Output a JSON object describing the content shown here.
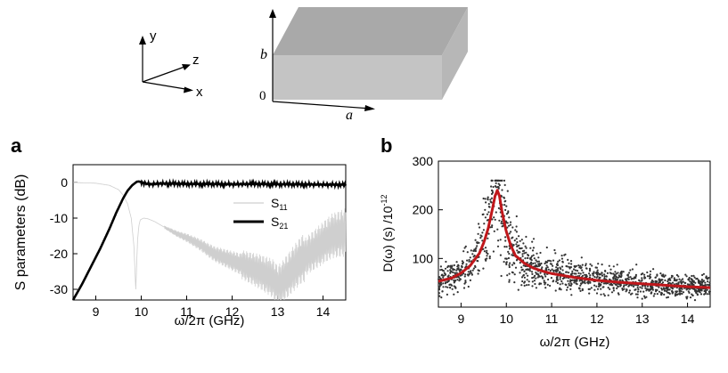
{
  "schematic": {
    "axes": {
      "y": "y",
      "z": "z",
      "x": "x"
    },
    "box": {
      "b": "b",
      "zero": "0",
      "a": "a"
    }
  },
  "chart_data": [
    {
      "panel": "a",
      "type": "line",
      "xlabel": "ω/2π (GHz)",
      "ylabel": "S parameters (dB)",
      "xlim": [
        8.5,
        14.5
      ],
      "ylim": [
        -33,
        5
      ],
      "xticks": [
        9,
        10,
        11,
        12,
        13,
        14
      ],
      "yticks": [
        0,
        -10,
        -20,
        -30
      ],
      "legend": {
        "position": "right-middle"
      },
      "series": [
        {
          "name": "S11",
          "name_main": "S",
          "name_sub": "11",
          "color": "#cfcfcf",
          "x": [
            8.5,
            9.0,
            9.3,
            9.5,
            9.6,
            9.7,
            9.78,
            9.84,
            9.88,
            9.92,
            9.95,
            9.98,
            10.05,
            10.15,
            10.3,
            10.5,
            10.8,
            11.0,
            11.3,
            11.6,
            12.0,
            12.3,
            12.6,
            12.9,
            13.0,
            13.1,
            13.3,
            13.5,
            13.8,
            14.0,
            14.2,
            14.5
          ],
          "values": [
            0,
            -0.2,
            -0.8,
            -2,
            -3.5,
            -6,
            -10,
            -18,
            -30,
            -16,
            -12,
            -10.5,
            -10,
            -10.2,
            -11,
            -12.5,
            -14.5,
            -15.5,
            -17.5,
            -20,
            -22,
            -23.5,
            -25,
            -27,
            -29,
            -28,
            -25,
            -22,
            -19,
            -17,
            -15,
            -14
          ]
        },
        {
          "name": "S21",
          "name_main": "S",
          "name_sub": "21",
          "color": "#000000",
          "x": [
            8.5,
            8.7,
            8.9,
            9.1,
            9.3,
            9.45,
            9.6,
            9.7,
            9.8,
            9.9,
            9.95,
            10.0,
            10.1,
            10.2,
            10.4,
            10.7,
            11.0,
            11.5,
            12.0,
            12.5,
            13.0,
            13.5,
            14.0,
            14.5
          ],
          "values": [
            -33,
            -28.5,
            -23.5,
            -18.5,
            -13,
            -8.5,
            -4.5,
            -2.3,
            -0.8,
            0.2,
            0.3,
            0.1,
            -0.3,
            -0.5,
            -0.3,
            -0.3,
            -0.4,
            -0.4,
            -0.5,
            -0.4,
            -0.5,
            -0.5,
            -0.6,
            -0.6
          ]
        }
      ]
    },
    {
      "panel": "b",
      "type": "scatter",
      "xlabel": "ω/2π (GHz)",
      "ylabel_main": "D(ω) (s) /10",
      "ylabel_exp": "-12",
      "xlim": [
        8.5,
        14.5
      ],
      "ylim": [
        0,
        300
      ],
      "xticks": [
        9,
        10,
        11,
        12,
        13,
        14
      ],
      "yticks": [
        100,
        200,
        300
      ],
      "series": [
        {
          "name": "",
          "style": "points",
          "color": "#333333",
          "x": [
            8.5,
            8.8,
            9.0,
            9.2,
            9.4,
            9.5,
            9.6,
            9.7,
            9.75,
            9.8,
            9.85,
            9.9,
            10.0,
            10.1,
            10.2,
            10.4,
            10.6,
            10.8,
            11.0,
            11.5,
            12.0,
            12.5,
            13.0,
            13.5,
            14.0,
            14.5
          ],
          "values": [
            50,
            62,
            72,
            88,
            112,
            135,
            165,
            205,
            225,
            240,
            225,
            200,
            160,
            130,
            108,
            92,
            83,
            76,
            72,
            64,
            58,
            53,
            50,
            47,
            44,
            42
          ]
        },
        {
          "name": "",
          "style": "line",
          "color": "#c0171b",
          "x": [
            8.5,
            8.8,
            9.0,
            9.2,
            9.4,
            9.5,
            9.6,
            9.7,
            9.75,
            9.8,
            9.85,
            9.9,
            10.0,
            10.1,
            10.2,
            10.4,
            10.6,
            10.8,
            11.0,
            11.5,
            12.0,
            12.5,
            13.0,
            13.5,
            14.0,
            14.5
          ],
          "values": [
            53,
            60,
            70,
            85,
            110,
            132,
            162,
            205,
            228,
            240,
            228,
            198,
            155,
            126,
            106,
            90,
            80,
            74,
            69,
            61,
            55,
            51,
            48,
            45,
            42,
            40
          ]
        }
      ]
    }
  ]
}
